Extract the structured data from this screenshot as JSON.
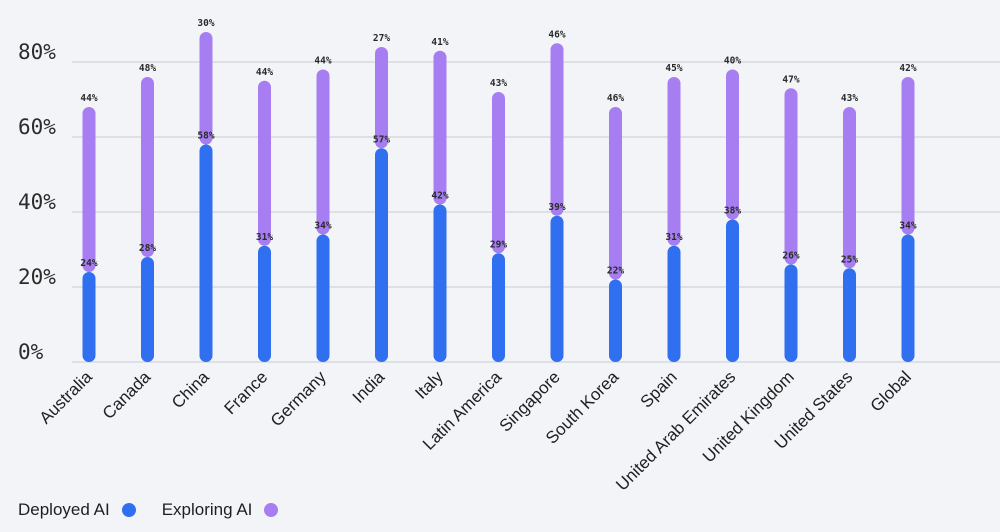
{
  "chart_data": {
    "type": "bar",
    "subtype": "floating-range",
    "categories": [
      "Australia",
      "Canada",
      "China",
      "France",
      "Germany",
      "India",
      "Italy",
      "Latin America",
      "Singapore",
      "South Korea",
      "Spain",
      "United Arab Emirates",
      "United Kingdom",
      "United States",
      "Global"
    ],
    "series": [
      {
        "name": "Deployed AI",
        "color": "#2f6ff0",
        "values": [
          24,
          28,
          58,
          31,
          34,
          57,
          42,
          29,
          39,
          22,
          31,
          38,
          26,
          25,
          34
        ]
      },
      {
        "name": "Exploring AI",
        "color": "#a77ef2",
        "values": [
          44,
          48,
          30,
          44,
          44,
          27,
          41,
          43,
          46,
          46,
          45,
          40,
          47,
          43,
          42
        ]
      }
    ],
    "value_suffix": "%",
    "yticks": [
      0,
      20,
      40,
      60,
      80
    ],
    "ytick_labels": [
      "0%",
      "20%",
      "40%",
      "60%",
      "80%"
    ],
    "ylim": [
      0,
      80
    ],
    "grid": true,
    "legend_position": "bottom-left"
  }
}
